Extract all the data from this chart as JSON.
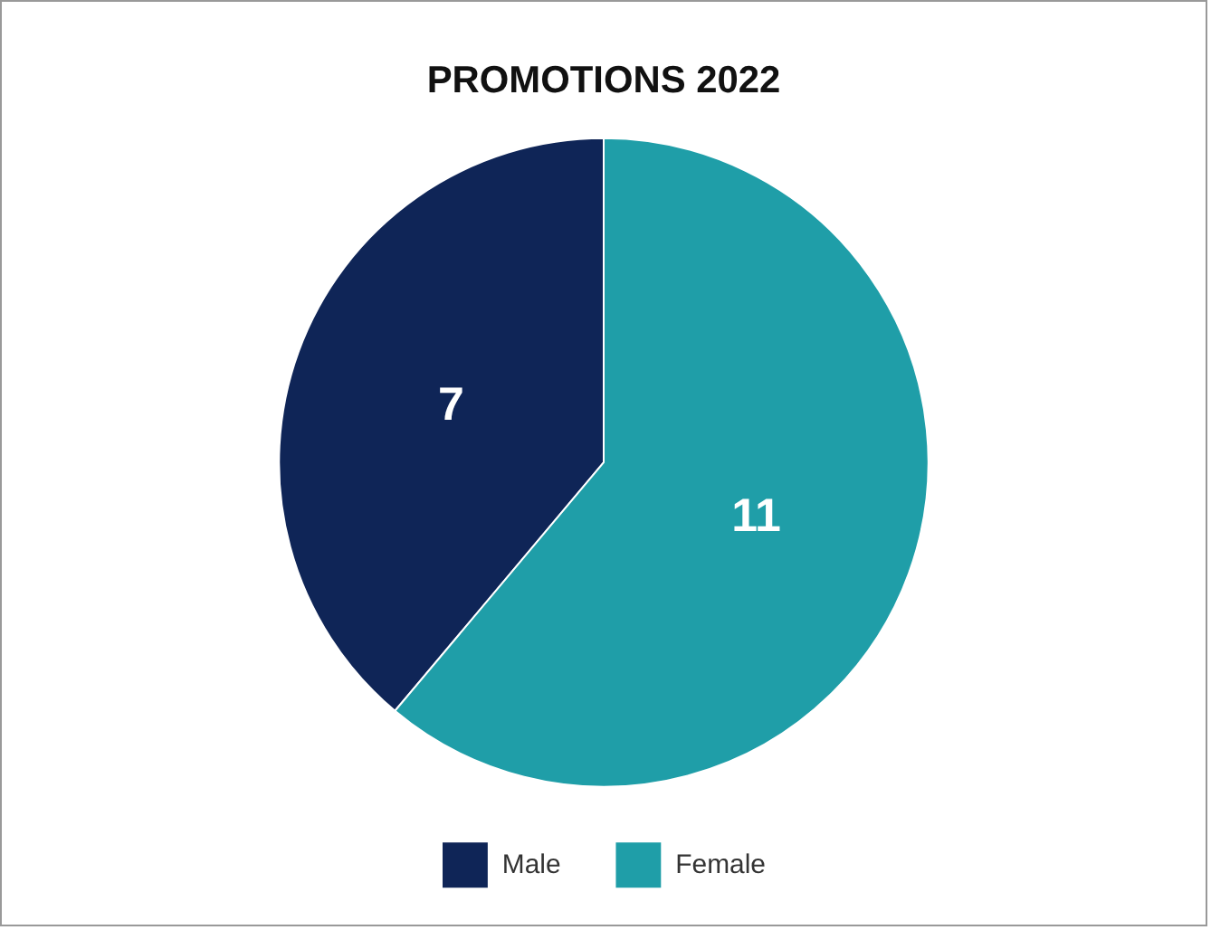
{
  "chart_data": {
    "type": "pie",
    "title": "PROMOTIONS 2022",
    "categories": [
      "Male",
      "Female"
    ],
    "values": [
      7,
      11
    ],
    "colors": [
      "#0f2557",
      "#1f9ea8"
    ],
    "data_labels": true,
    "legend": "bottom"
  }
}
